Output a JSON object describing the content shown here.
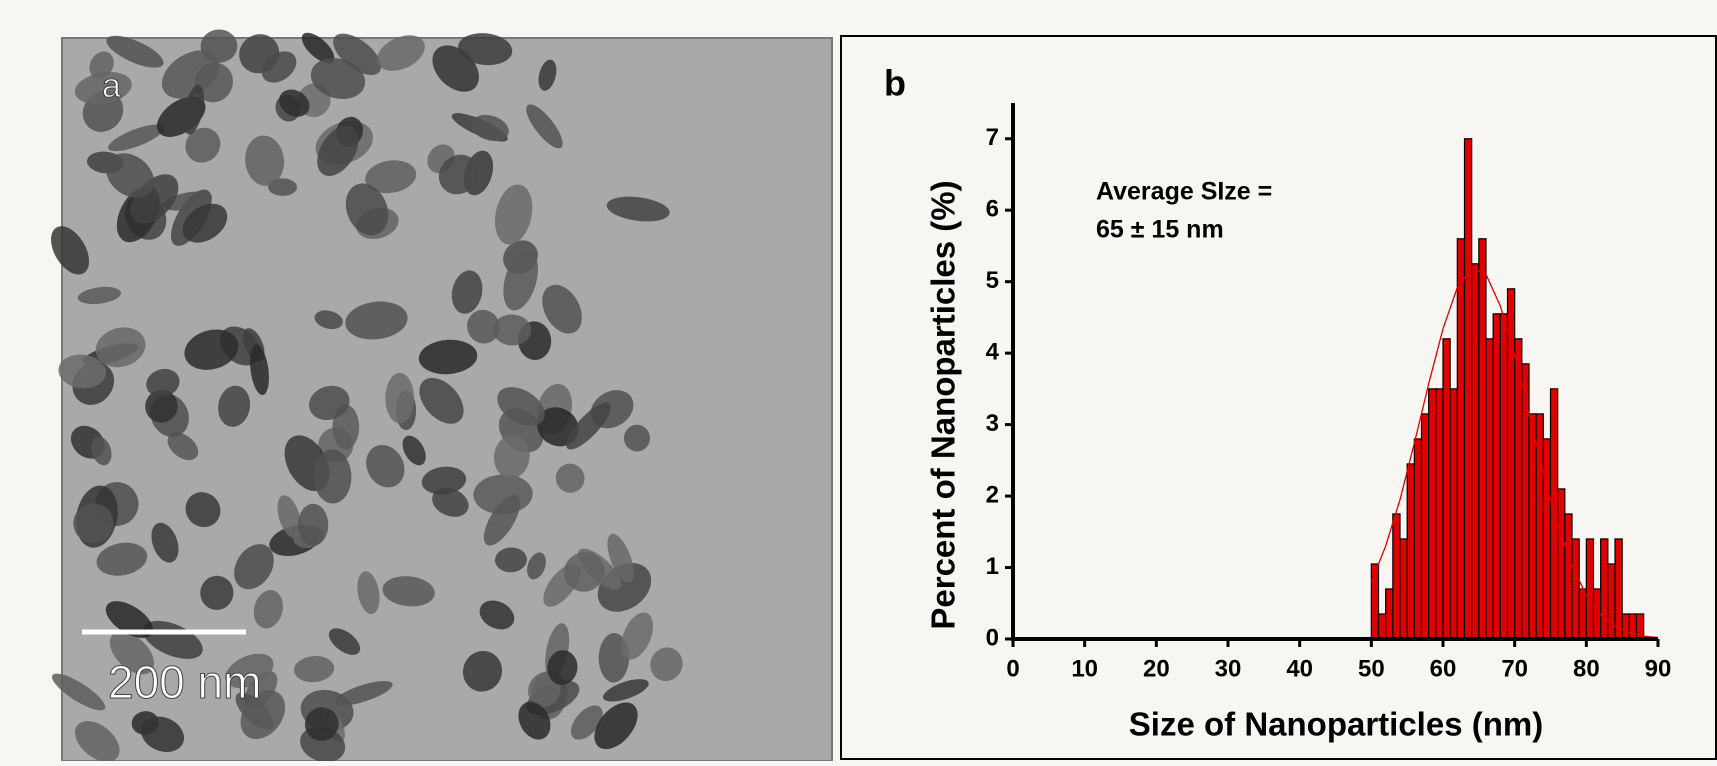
{
  "panel_a": {
    "label": "a",
    "scale_bar": "200 nm"
  },
  "chart_data": {
    "type": "histogram",
    "panel_label": "b",
    "annotation": [
      "Average SIze =",
      "65 ± 15 nm"
    ],
    "x_label": "Size of Nanoparticles (nm)",
    "y_label": "Percent of Nanoparticles (%)",
    "bins": [
      50,
      51,
      52,
      53,
      54,
      55,
      56,
      57,
      58,
      59,
      60,
      61,
      62,
      63,
      64,
      65,
      66,
      67,
      68,
      69,
      70,
      71,
      72,
      73,
      74,
      75,
      76,
      77,
      78,
      79,
      80,
      81,
      82,
      83,
      84,
      85,
      86,
      87,
      88
    ],
    "values": [
      1.05,
      0.35,
      0.7,
      1.75,
      1.4,
      2.45,
      2.8,
      3.15,
      3.5,
      3.5,
      4.2,
      3.5,
      5.6,
      7.0,
      5.25,
      5.6,
      4.2,
      4.55,
      4.55,
      4.9,
      4.2,
      3.85,
      3.15,
      3.15,
      2.8,
      3.5,
      2.1,
      1.75,
      1.4,
      0.7,
      1.4,
      0.7,
      1.4,
      1.05,
      1.4,
      0.35,
      0.35,
      0.35
    ],
    "color": "#e00000",
    "fit": {
      "color": "#e00000",
      "x": [
        50,
        52,
        54,
        56,
        58,
        60,
        62,
        64,
        66,
        68,
        70,
        72,
        74,
        76,
        78,
        80,
        82,
        84,
        86,
        88,
        90
      ],
      "values": [
        0.8,
        1.3,
        1.95,
        2.74,
        3.57,
        4.34,
        4.92,
        5.19,
        5.1,
        4.66,
        3.97,
        3.15,
        2.33,
        1.6,
        1.03,
        0.61,
        0.34,
        0.18,
        0.09,
        0.04,
        0.02
      ]
    },
    "xlim": [
      0,
      90
    ],
    "xticks": [
      0,
      10,
      20,
      30,
      40,
      50,
      60,
      70,
      80,
      90
    ],
    "ylim": [
      0,
      7.5
    ],
    "yticks": [
      0,
      1,
      2,
      3,
      4,
      5,
      6,
      7
    ]
  }
}
